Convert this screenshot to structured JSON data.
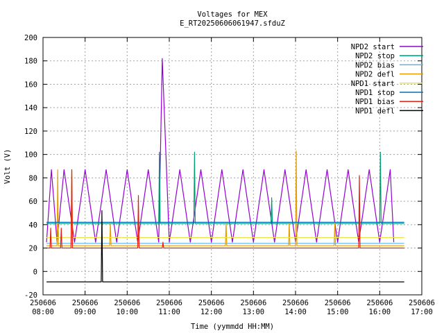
{
  "chart_data": {
    "type": "line",
    "title": "Voltages for MEX",
    "subtitle": "E_RT20250606061947.sfduZ",
    "xlabel": "Time (yymmdd HH:MM)",
    "ylabel": "Volt (V)",
    "ylim": [
      -20,
      200
    ],
    "yticks": [
      "-20",
      "0",
      "20",
      "40",
      "60",
      "80",
      "100",
      "120",
      "140",
      "160",
      "180",
      "200"
    ],
    "xlim": [
      "250606 08:00",
      "250606 17:00"
    ],
    "xticks": [
      {
        "date": "250606",
        "time": "08:00"
      },
      {
        "date": "250606",
        "time": "09:00"
      },
      {
        "date": "250606",
        "time": "10:00"
      },
      {
        "date": "250606",
        "time": "11:00"
      },
      {
        "date": "250606",
        "time": "12:00"
      },
      {
        "date": "250606",
        "time": "13:00"
      },
      {
        "date": "250606",
        "time": "14:00"
      },
      {
        "date": "250606",
        "time": "15:00"
      },
      {
        "date": "250606",
        "time": "16:00"
      },
      {
        "date": "250606",
        "time": "17:00"
      }
    ],
    "grid": true,
    "legend_position": "top-right",
    "series": [
      {
        "name": "NPD2 start",
        "color": "#9400d3",
        "x": [
          "08:05",
          "08:12",
          "08:20",
          "08:30",
          "08:45",
          "09:00",
          "09:15",
          "09:30",
          "09:45",
          "10:00",
          "10:15",
          "10:30",
          "10:45",
          "10:50",
          "11:00",
          "11:15",
          "11:30",
          "11:45",
          "12:00",
          "12:15",
          "12:30",
          "12:45",
          "13:00",
          "13:15",
          "13:30",
          "13:45",
          "14:00",
          "14:15",
          "14:30",
          "14:45",
          "15:00",
          "15:15",
          "15:30",
          "15:45",
          "16:00",
          "16:15",
          "16:20"
        ],
        "y": [
          25,
          87,
          25,
          87,
          25,
          87,
          25,
          87,
          25,
          87,
          25,
          87,
          25,
          182,
          25,
          87,
          25,
          87,
          25,
          87,
          25,
          87,
          25,
          87,
          25,
          87,
          25,
          87,
          25,
          87,
          25,
          87,
          25,
          87,
          25,
          87,
          25
        ]
      },
      {
        "name": "NPD2 stop",
        "color": "#009e73",
        "x": [
          "08:05",
          "10:45",
          "10:46",
          "10:47",
          "11:35",
          "11:36",
          "11:37",
          "13:25",
          "13:26",
          "13:27",
          "16:00",
          "16:01",
          "16:02",
          "16:35"
        ],
        "y": [
          41,
          41,
          102,
          41,
          41,
          102,
          41,
          41,
          63,
          41,
          41,
          102,
          41,
          41
        ]
      },
      {
        "name": "NPD2 bias",
        "color": "#56b4e9",
        "x": [
          "08:05",
          "16:35"
        ],
        "y": [
          24,
          24
        ]
      },
      {
        "name": "NPD2 defl",
        "color": "#e69f00",
        "x": [
          "08:05",
          "08:20",
          "08:21",
          "08:22",
          "08:40",
          "08:41",
          "08:42",
          "09:35",
          "09:36",
          "09:37",
          "12:20",
          "12:21",
          "12:22",
          "13:50",
          "13:51",
          "13:52",
          "14:00",
          "14:01",
          "14:02",
          "14:55",
          "14:56",
          "14:57",
          "16:35"
        ],
        "y": [
          22,
          22,
          87,
          22,
          22,
          87,
          22,
          22,
          42,
          22,
          22,
          42,
          22,
          22,
          42,
          22,
          22,
          103,
          22,
          22,
          42,
          22,
          22
        ]
      },
      {
        "name": "NPD1 start",
        "color": "#f0e442",
        "x": [
          "08:05",
          "16:35"
        ],
        "y": [
          29,
          29
        ]
      },
      {
        "name": "NPD1 stop",
        "color": "#0072b2",
        "x": [
          "08:05",
          "16:35"
        ],
        "y": [
          42,
          42
        ]
      },
      {
        "name": "NPD1 bias",
        "color": "#e51e10",
        "x": [
          "08:05",
          "08:10",
          "08:11",
          "08:12",
          "08:25",
          "08:26",
          "08:27",
          "08:40",
          "08:41",
          "08:42",
          "10:15",
          "10:16",
          "10:17",
          "10:50",
          "10:51",
          "10:52",
          "15:30",
          "15:31",
          "15:32",
          "16:35"
        ],
        "y": [
          20,
          20,
          37,
          20,
          20,
          37,
          20,
          20,
          87,
          20,
          20,
          65,
          20,
          20,
          25,
          20,
          20,
          82,
          20,
          20
        ]
      },
      {
        "name": "NPD1 defl",
        "color": "#000000",
        "x": [
          "08:05",
          "09:23",
          "09:24",
          "09:25",
          "16:35"
        ],
        "y": [
          -9,
          -9,
          52,
          -9,
          -9
        ]
      }
    ]
  }
}
